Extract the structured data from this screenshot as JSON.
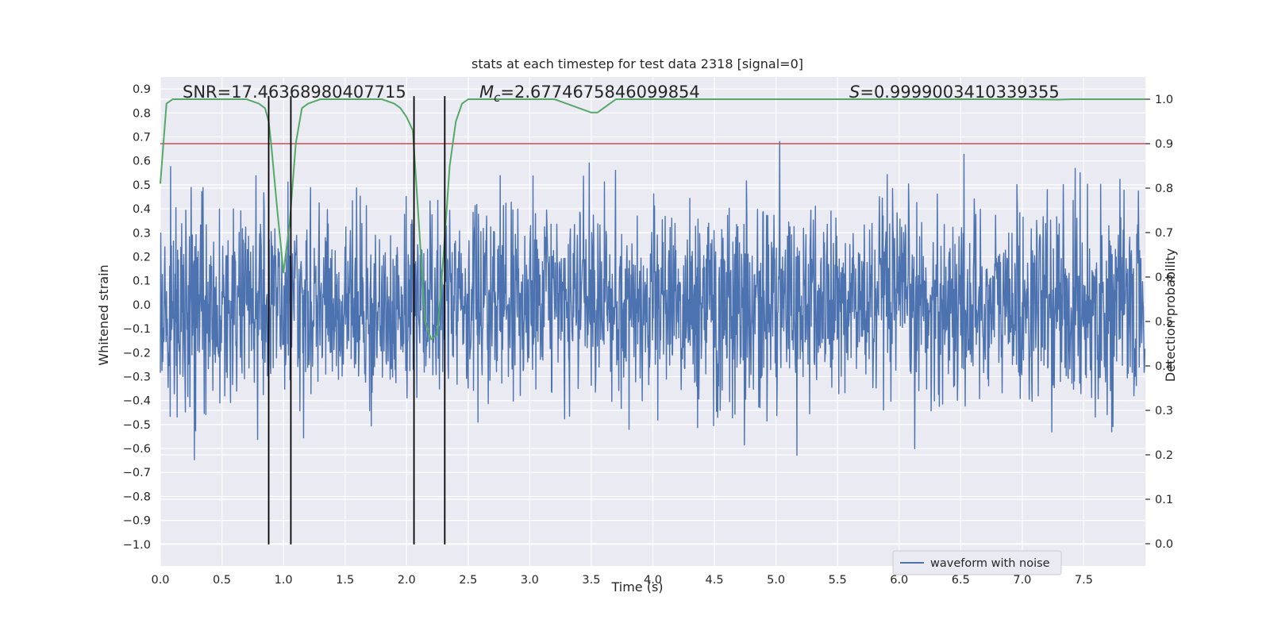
{
  "chart_data": {
    "type": "line",
    "title": "stats at each timestep for test data 2318 [signal=0]",
    "xlabel": "Time (s)",
    "ylabel": "Whitened strain",
    "y2label": "Detection probability",
    "xlim": [
      0.0,
      8.0
    ],
    "ylim": [
      -1.09,
      0.95
    ],
    "y2lim": [
      -0.05,
      1.05
    ],
    "xticks": [
      "0.0",
      "0.5",
      "1.0",
      "1.5",
      "2.0",
      "2.5",
      "3.0",
      "3.5",
      "4.0",
      "4.5",
      "5.0",
      "5.5",
      "6.0",
      "6.5",
      "7.0",
      "7.5"
    ],
    "yticks": [
      "0.9",
      "0.8",
      "0.7",
      "0.6",
      "0.5",
      "0.4",
      "0.3",
      "0.2",
      "0.1",
      "0.0",
      "−0.1",
      "−0.2",
      "−0.3",
      "−0.4",
      "−0.5",
      "−0.6",
      "−0.7",
      "−0.8",
      "−0.9",
      "−1.0"
    ],
    "y2ticks": [
      "1.0",
      "0.9",
      "0.8",
      "0.7",
      "0.6",
      "0.5",
      "0.4",
      "0.3",
      "0.2",
      "0.1",
      "0.0"
    ],
    "grid": true,
    "legend_placement": "lower-center-right",
    "stats": {
      "snr_label": "SNR=",
      "snr_value": "17.46368980407715",
      "mc_label": "M",
      "mc_subscript": "c",
      "mc_value": "=2.6774675846099854",
      "s_label": "S",
      "s_value": "=0.9999003410339355"
    },
    "series": [
      {
        "name": "waveform with noise",
        "color": "#4c72b0",
        "kind": "noise",
        "duration": 8.0,
        "amplitude_range": [
          -1.0,
          0.87
        ]
      },
      {
        "color": "#55a868",
        "axis": "right",
        "kind": "line",
        "x": [
          0.0,
          0.05,
          0.1,
          0.15,
          0.2,
          0.3,
          0.4,
          0.5,
          0.6,
          0.7,
          0.8,
          0.85,
          0.88,
          0.9,
          0.95,
          1.0,
          1.05,
          1.1,
          1.15,
          1.2,
          1.3,
          1.4,
          1.5,
          1.6,
          1.7,
          1.8,
          1.9,
          1.95,
          2.0,
          2.05,
          2.1,
          2.15,
          2.2,
          2.25,
          2.3,
          2.35,
          2.4,
          2.45,
          2.5,
          2.7,
          3.0,
          3.2,
          3.3,
          3.4,
          3.5,
          3.55,
          3.6,
          3.65,
          3.7,
          3.8,
          4.0,
          5.0,
          6.0,
          7.0,
          7.3,
          7.4,
          7.5,
          8.0
        ],
        "y": [
          0.81,
          0.99,
          1.0,
          1.0,
          1.0,
          1.0,
          1.0,
          1.0,
          1.0,
          1.0,
          0.99,
          0.98,
          0.95,
          0.9,
          0.75,
          0.61,
          0.72,
          0.9,
          0.98,
          0.99,
          1.0,
          1.0,
          1.0,
          1.0,
          1.0,
          1.0,
          0.99,
          0.98,
          0.96,
          0.93,
          0.72,
          0.5,
          0.46,
          0.47,
          0.65,
          0.85,
          0.95,
          0.99,
          1.0,
          1.0,
          1.0,
          1.0,
          0.99,
          0.98,
          0.97,
          0.97,
          0.98,
          0.99,
          1.0,
          1.0,
          1.0,
          1.0,
          1.0,
          1.0,
          0.999,
          1.0,
          1.0,
          1.0
        ]
      },
      {
        "color": "#c44e52",
        "axis": "right",
        "kind": "hline",
        "value": 0.9
      }
    ],
    "vlines": {
      "color": "#000000",
      "x": [
        0.88,
        1.06,
        2.06,
        2.31
      ],
      "y_range": [
        -1.0,
        0.87
      ]
    }
  }
}
